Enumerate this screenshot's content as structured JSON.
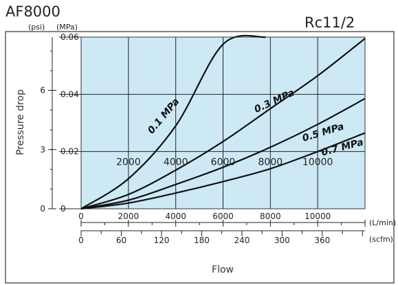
{
  "title": "AF8000",
  "model": "Rc1",
  "model_fraction": "1/2",
  "chart_data": {
    "type": "line",
    "title": "AF8000",
    "subtitle": "Rc11/2",
    "ylabel": "Pressure drop",
    "xlabel": "Flow",
    "y_units_left": "(psi)",
    "y_units_right": "(MPa)",
    "x_units_primary": "(L/min)",
    "x_units_secondary": "(scfm)",
    "ylim": [
      0,
      0.06
    ],
    "xlim": [
      0,
      12000
    ],
    "yticks_mpa": [
      "0",
      "0.02",
      "0.04",
      "0.06"
    ],
    "yticks_psi": [
      {
        "label": "0",
        "mpa": 0
      },
      {
        "label": "3",
        "mpa": 0.0207
      },
      {
        "label": "6",
        "mpa": 0.0414
      }
    ],
    "xticks_lmin": [
      "0",
      "2000",
      "4000",
      "6000",
      "8000",
      "10000"
    ],
    "xticks_scfm": [
      "0",
      "60",
      "120",
      "180",
      "240",
      "300",
      "360"
    ],
    "grid_labels": [
      "2000",
      "4000",
      "6000",
      "8000",
      "10000"
    ],
    "grid": true,
    "background_color": "#cde9f6",
    "series": [
      {
        "name": "0.1 MPa",
        "x": [
          0,
          2000,
          4000,
          6000,
          7800
        ],
        "y": [
          0,
          0.0105,
          0.029,
          0.0575,
          0.061
        ]
      },
      {
        "name": "0.3 MPa",
        "x": [
          0,
          2000,
          4000,
          6000,
          8000,
          10000,
          12000
        ],
        "y": [
          0,
          0.005,
          0.0135,
          0.0235,
          0.035,
          0.0465,
          0.0595
        ]
      },
      {
        "name": "0.5 MPa",
        "x": [
          0,
          2000,
          4000,
          6000,
          8000,
          10000,
          12000
        ],
        "y": [
          0,
          0.003,
          0.0085,
          0.0145,
          0.0215,
          0.0295,
          0.0385
        ]
      },
      {
        "name": "0.7 MPa",
        "x": [
          0,
          2000,
          4000,
          6000,
          8000,
          10000,
          12000
        ],
        "y": [
          0,
          0.002,
          0.0055,
          0.0095,
          0.014,
          0.02,
          0.0265
        ]
      }
    ]
  }
}
